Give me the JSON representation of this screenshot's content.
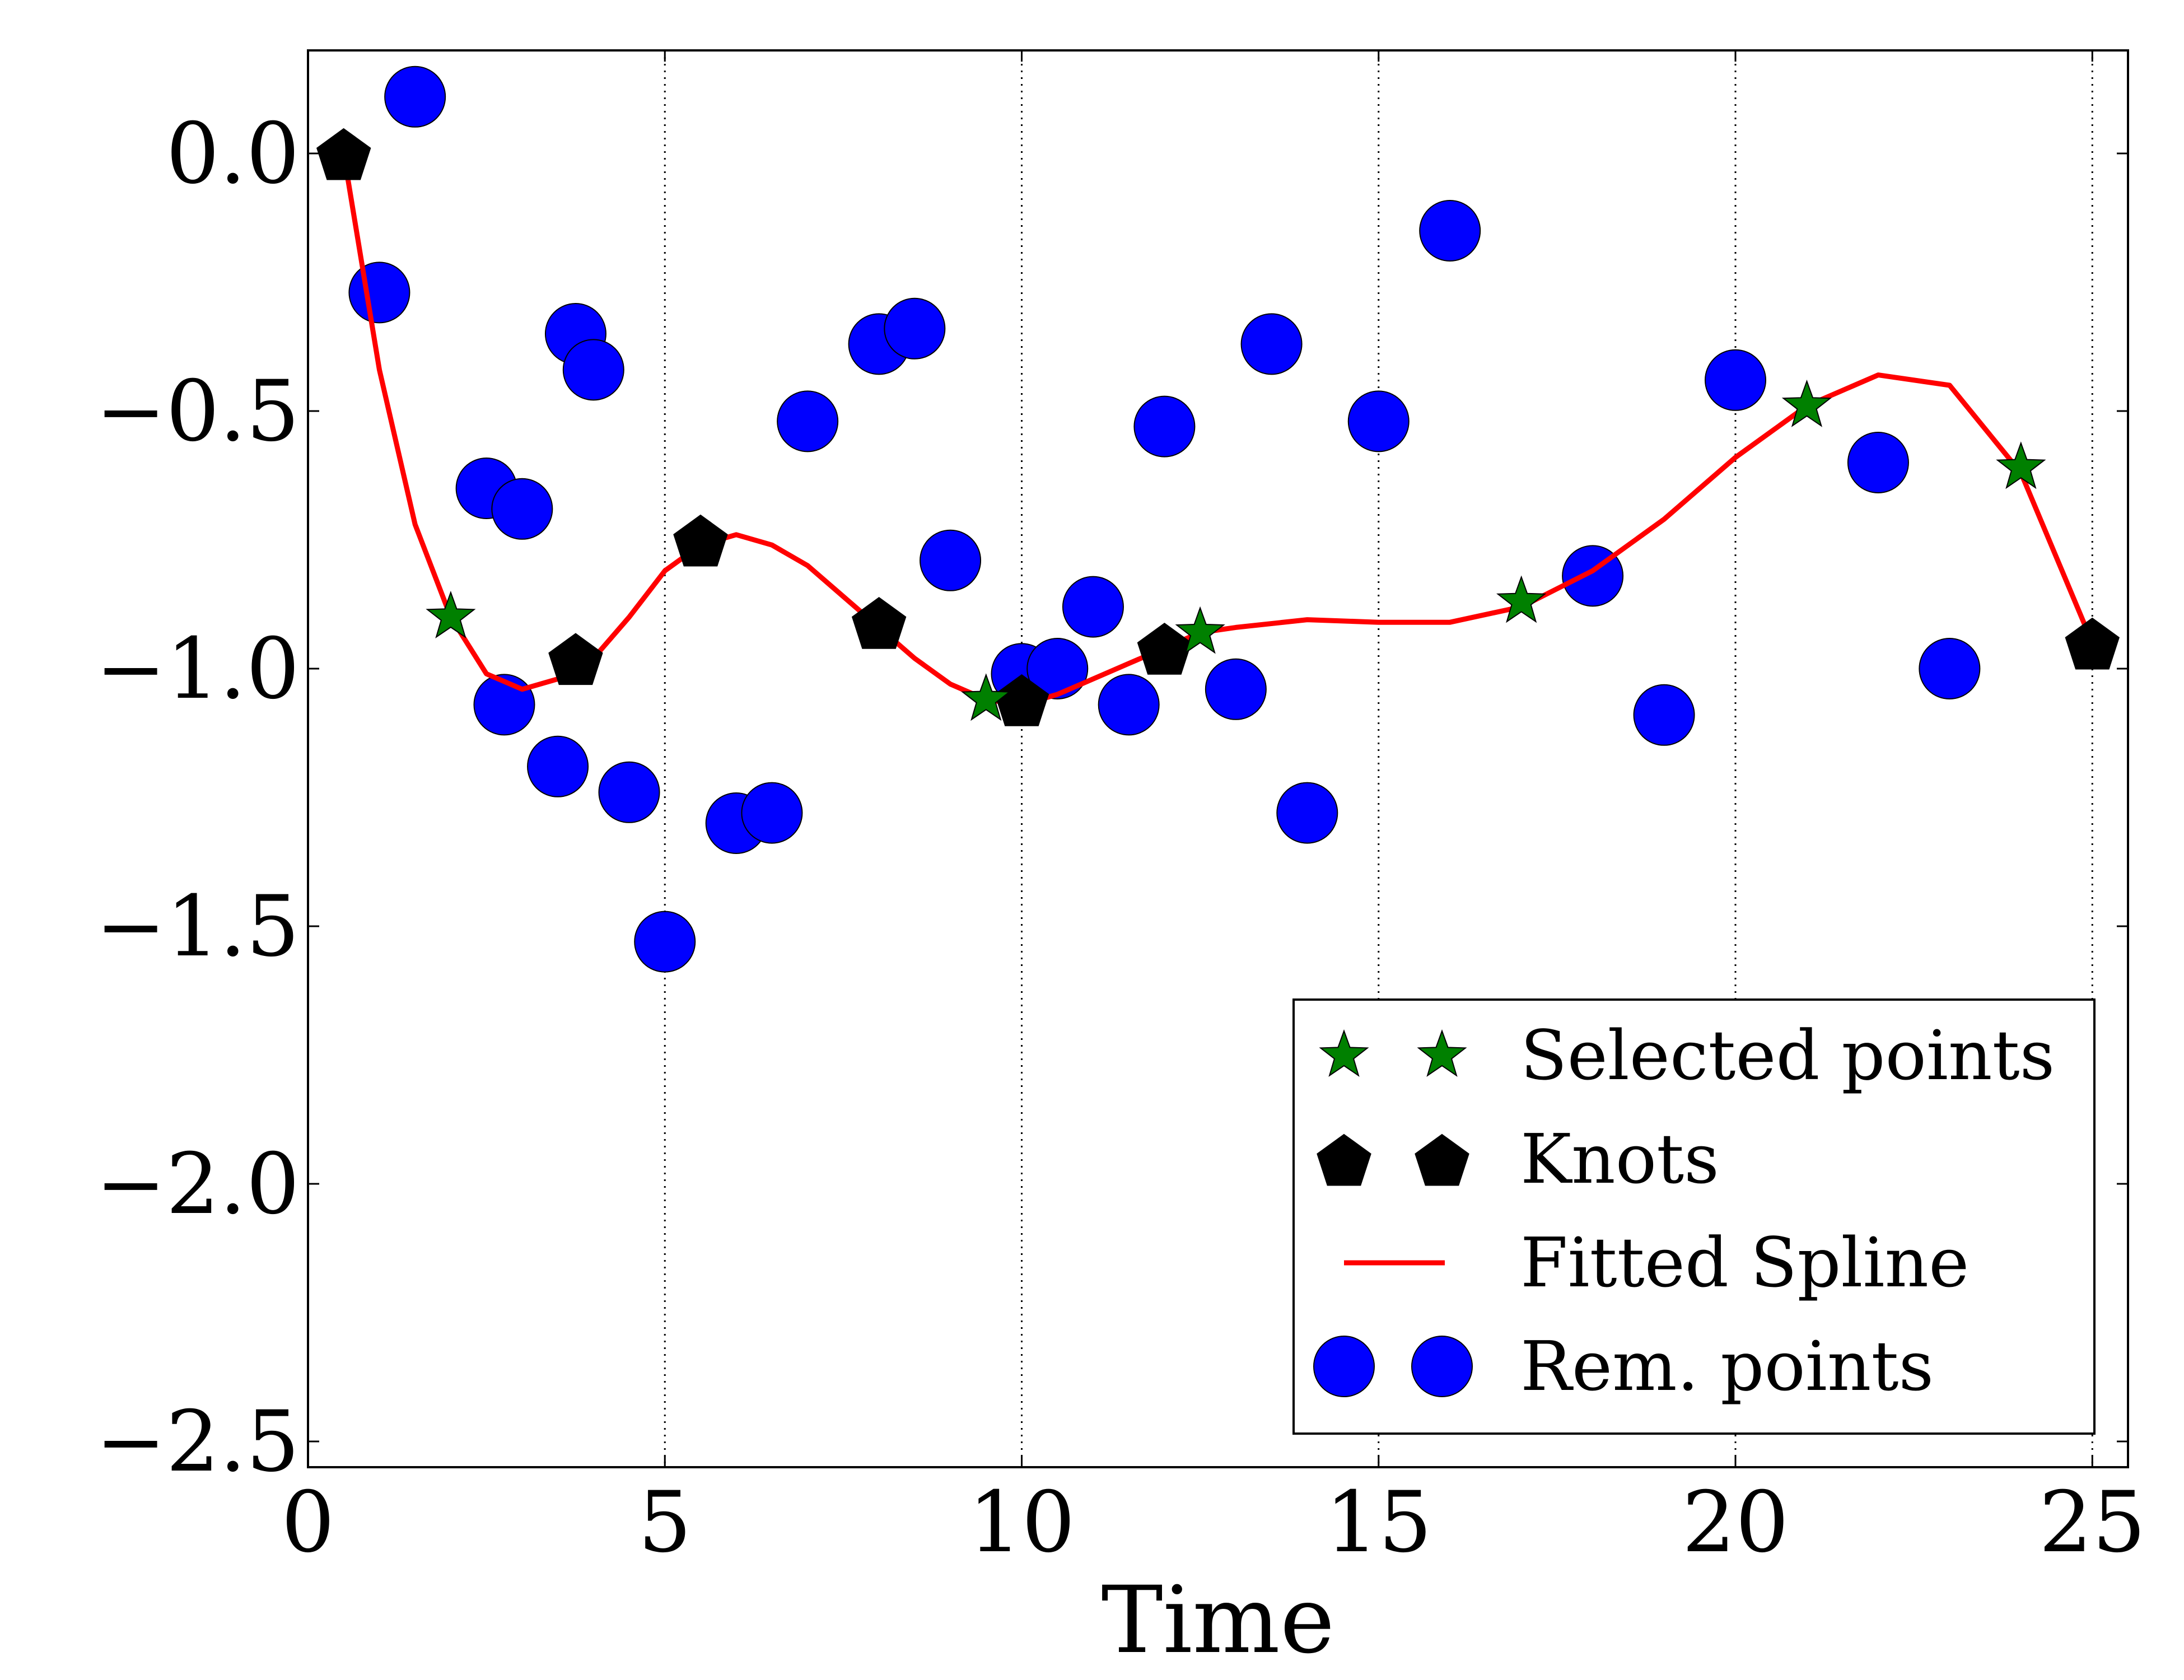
{
  "chart_data": {
    "type": "scatter",
    "title": "",
    "xlabel": "Time",
    "ylabel": "",
    "xlim": [
      0,
      25.5
    ],
    "ylim": [
      -2.55,
      0.2
    ],
    "xticks": [
      "0",
      "5",
      "10",
      "15",
      "20",
      "25"
    ],
    "yticks": [
      "0.0",
      "−0.5",
      "−1.0",
      "−1.5",
      "−2.0",
      "−2.5"
    ],
    "grid": "vertical dotted",
    "legend_position": "lower-right",
    "colors": {
      "selected": "#008000",
      "knots": "#000000",
      "spline": "#ff0000",
      "remaining": "#0000ff"
    },
    "legend": [
      {
        "key": "selected",
        "label": "Selected points"
      },
      {
        "key": "knots",
        "label": "Knots"
      },
      {
        "key": "spline",
        "label": "Fitted Spline"
      },
      {
        "key": "remaining",
        "label": "Rem. points"
      }
    ],
    "series": [
      {
        "key": "remaining",
        "name": "Rem. points",
        "marker": "circle",
        "points": [
          [
            1.0,
            -0.27
          ],
          [
            1.5,
            0.11
          ],
          [
            2.5,
            -0.65
          ],
          [
            2.75,
            -1.07
          ],
          [
            3.0,
            -0.69
          ],
          [
            3.5,
            -1.19
          ],
          [
            3.75,
            -0.35
          ],
          [
            4.0,
            -0.42
          ],
          [
            4.5,
            -1.24
          ],
          [
            5.0,
            -1.53
          ],
          [
            6.0,
            -1.3
          ],
          [
            6.5,
            -1.28
          ],
          [
            7.0,
            -0.52
          ],
          [
            8.0,
            -0.37
          ],
          [
            8.5,
            -0.34
          ],
          [
            9.0,
            -0.79
          ],
          [
            10.0,
            -1.01
          ],
          [
            10.5,
            -1.0
          ],
          [
            11.0,
            -0.88
          ],
          [
            11.5,
            -1.07
          ],
          [
            12.0,
            -0.53
          ],
          [
            13.0,
            -1.04
          ],
          [
            13.5,
            -0.37
          ],
          [
            14.0,
            -1.28
          ],
          [
            15.0,
            -0.52
          ],
          [
            16.0,
            -0.15
          ],
          [
            18.0,
            -0.82
          ],
          [
            19.0,
            -1.09
          ],
          [
            20.0,
            -0.44
          ],
          [
            22.0,
            -0.6
          ],
          [
            23.0,
            -1.0
          ]
        ]
      },
      {
        "key": "spline",
        "name": "Fitted Spline",
        "marker": "line",
        "points": [
          [
            0.5,
            0.0
          ],
          [
            1.0,
            -0.42
          ],
          [
            1.5,
            -0.72
          ],
          [
            2.0,
            -0.9
          ],
          [
            2.5,
            -1.01
          ],
          [
            3.0,
            -1.04
          ],
          [
            3.5,
            -1.02
          ],
          [
            4.0,
            -0.98
          ],
          [
            4.5,
            -0.9
          ],
          [
            5.0,
            -0.81
          ],
          [
            5.5,
            -0.76
          ],
          [
            6.0,
            -0.74
          ],
          [
            6.5,
            -0.76
          ],
          [
            7.0,
            -0.8
          ],
          [
            7.5,
            -0.86
          ],
          [
            8.0,
            -0.92
          ],
          [
            8.5,
            -0.98
          ],
          [
            9.0,
            -1.03
          ],
          [
            9.5,
            -1.06
          ],
          [
            10.0,
            -1.07
          ],
          [
            10.5,
            -1.05
          ],
          [
            11.0,
            -1.02
          ],
          [
            11.5,
            -0.99
          ],
          [
            12.0,
            -0.96
          ],
          [
            12.5,
            -0.93
          ],
          [
            13.0,
            -0.92
          ],
          [
            14.0,
            -0.905
          ],
          [
            15.0,
            -0.91
          ],
          [
            16.0,
            -0.91
          ],
          [
            17.0,
            -0.88
          ],
          [
            18.0,
            -0.81
          ],
          [
            19.0,
            -0.71
          ],
          [
            20.0,
            -0.59
          ],
          [
            21.0,
            -0.49
          ],
          [
            22.0,
            -0.43
          ],
          [
            23.0,
            -0.45
          ],
          [
            24.0,
            -0.62
          ],
          [
            25.0,
            -0.95
          ]
        ]
      },
      {
        "key": "knots",
        "name": "Knots",
        "marker": "pentagon",
        "points": [
          [
            0.5,
            0.0
          ],
          [
            3.75,
            -0.98
          ],
          [
            5.5,
            -0.75
          ],
          [
            8.0,
            -0.91
          ],
          [
            10.0,
            -1.06
          ],
          [
            12.0,
            -0.96
          ],
          [
            25.0,
            -0.95
          ]
        ]
      },
      {
        "key": "selected",
        "name": "Selected points",
        "marker": "star",
        "points": [
          [
            2.0,
            -0.9
          ],
          [
            9.5,
            -1.06
          ],
          [
            12.5,
            -0.93
          ],
          [
            17.0,
            -0.87
          ],
          [
            21.0,
            -0.49
          ],
          [
            24.0,
            -0.61
          ]
        ]
      }
    ]
  }
}
